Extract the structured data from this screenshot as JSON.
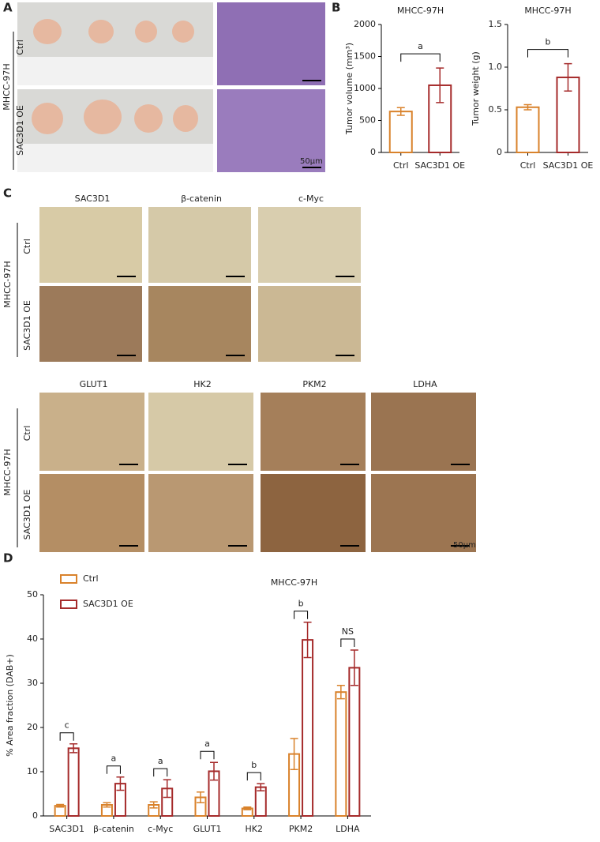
{
  "panel_labels": [
    "A",
    "B",
    "C",
    "D"
  ],
  "panel_a": {
    "cell_line": "MHCC-97H",
    "rows": [
      "Ctrl",
      "SAC3D1 OE"
    ],
    "scale_bar": "50μm"
  },
  "panel_c": {
    "groups": [
      {
        "cell_line": "MHCC-97H",
        "rows": [
          "Ctrl",
          "SAC3D1 OE"
        ],
        "columns": [
          "SAC3D1",
          "β-catenin",
          "c-Myc"
        ]
      },
      {
        "cell_line": "MHCC-97H",
        "rows": [
          "Ctrl",
          "SAC3D1 OE"
        ],
        "columns": [
          "GLUT1",
          "HK2",
          "PKM2",
          "LDHA"
        ]
      }
    ],
    "scale_bar": "50μm"
  },
  "chart_data": [
    {
      "type": "bar",
      "title": "MHCC-97H",
      "y_label": "Tumor volume (mm³)",
      "categories": [
        "Ctrl",
        "SAC3D1 OE"
      ],
      "values": [
        640,
        1050
      ],
      "errors": [
        60,
        270
      ],
      "colors": [
        "#d9822b",
        "#a52a2a"
      ],
      "annotation": "a",
      "ylim": [
        0,
        2000
      ],
      "yticks": [
        0,
        500,
        1000,
        1500,
        2000
      ]
    },
    {
      "type": "bar",
      "title": "MHCC-97H",
      "y_label": "Tumor weight (g)",
      "categories": [
        "Ctrl",
        "SAC3D1 OE"
      ],
      "values": [
        0.53,
        0.88
      ],
      "errors": [
        0.03,
        0.16
      ],
      "colors": [
        "#d9822b",
        "#a52a2a"
      ],
      "annotation": "b",
      "ylim": [
        0,
        1.5
      ],
      "yticks": [
        0,
        0.5,
        {
          "value": 1,
          "label": "1.0"
        },
        1.5
      ]
    },
    {
      "type": "bar",
      "title": "MHCC-97H",
      "y_label": "% Area fraction (DAB+)",
      "categories": [
        "SAC3D1",
        "β-catenin",
        "c-Myc",
        "GLUT1",
        "HK2",
        "PKM2",
        "LDHA"
      ],
      "series": [
        {
          "name": "Ctrl",
          "color": "#d9822b",
          "values": [
            2.3,
            2.5,
            2.5,
            4.2,
            1.7,
            14,
            28
          ],
          "errors": [
            0.3,
            0.5,
            0.7,
            1.2,
            0.3,
            3.5,
            1.5
          ]
        },
        {
          "name": "SAC3D1 OE",
          "color": "#a52a2a",
          "values": [
            15.3,
            7.3,
            6.2,
            10.1,
            6.5,
            39.8,
            33.5
          ],
          "errors": [
            1,
            1.5,
            2,
            2,
            0.8,
            4,
            4
          ]
        }
      ],
      "annotations": [
        "c",
        "a",
        "a",
        "a",
        "b",
        "b",
        "NS"
      ],
      "ylim": [
        0,
        50
      ],
      "yticks": [
        0,
        10,
        20,
        30,
        40,
        50
      ],
      "legend": "top-left"
    }
  ]
}
